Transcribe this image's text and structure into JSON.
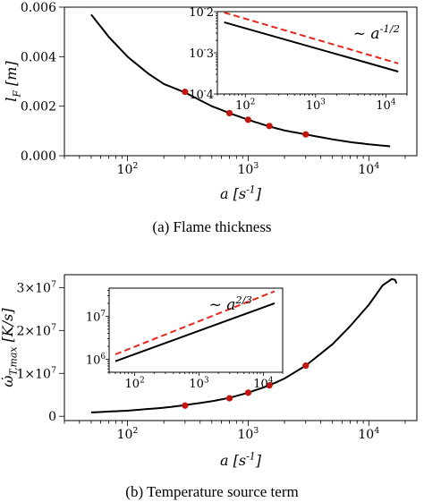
{
  "chart_data": [
    {
      "type": "line",
      "caption": "(a) Flame thickness",
      "xlabel": "a [s^{-1}]",
      "ylabel": "l_F [m]",
      "xscale": "log",
      "xlim": [
        30,
        25000
      ],
      "ylim": [
        0,
        0.006
      ],
      "yticks": [
        "0.000",
        "0.002",
        "0.004",
        "0.006"
      ],
      "xticks": [
        "10^2",
        "10^3",
        "10^4"
      ],
      "grid": false,
      "series": [
        {
          "color": "#000000",
          "style": "solid",
          "x": [
            50,
            70,
            100,
            150,
            200,
            300,
            500,
            700,
            1000,
            1500,
            2000,
            3000,
            5000,
            7000,
            10000,
            15000
          ],
          "y": [
            0.0057,
            0.0048,
            0.004,
            0.0033,
            0.0029,
            0.00255,
            0.002,
            0.00172,
            0.00145,
            0.00118,
            0.00102,
            0.00086,
            0.00066,
            0.00055,
            0.00046,
            0.00038
          ]
        },
        {
          "color": "#c0160f",
          "style": "markers",
          "x": [
            300,
            700,
            1000,
            1500,
            3000
          ],
          "y": [
            0.00258,
            0.00172,
            0.00145,
            0.0012,
            0.00086
          ]
        }
      ],
      "inset": {
        "xscale": "log",
        "yscale": "log",
        "xlim": [
          40,
          20000
        ],
        "ylim": [
          0.0001,
          0.01
        ],
        "xticks": [
          "10^2",
          "10^3",
          "10^4"
        ],
        "yticks": [
          "10^-2",
          "10^-3",
          "10^-4"
        ],
        "annotation": "~ a^{-1/2}",
        "series": [
          {
            "color": "#000000",
            "style": "solid",
            "x": [
              50,
              15000
            ],
            "y": [
              0.0055,
              0.00035
            ]
          },
          {
            "color": "#e8261b",
            "style": "dashed",
            "x": [
              50,
              15000
            ],
            "y": [
              0.0095,
              0.00055
            ]
          }
        ]
      }
    },
    {
      "type": "line",
      "caption": "(b) Temperature source term",
      "xlabel": "a [s^{-1}]",
      "ylabel": "ω̇_{T,max} [K/s]",
      "xscale": "log",
      "xlim": [
        30,
        25000
      ],
      "ylim": [
        -1000000,
        33000000
      ],
      "yticks": [
        "0",
        "1×10^7",
        "2×10^7",
        "3×10^7"
      ],
      "xticks": [
        "10^2",
        "10^3",
        "10^4"
      ],
      "grid": false,
      "series": [
        {
          "color": "#000000",
          "style": "solid",
          "x": [
            50,
            100,
            200,
            300,
            500,
            700,
            1000,
            1500,
            2000,
            3000,
            5000,
            7000,
            10000,
            13000,
            15500,
            16500,
            17000
          ],
          "y": [
            900000,
            1300000,
            2000000,
            2600000,
            3500000,
            4300000,
            5500000,
            7200000,
            8800000,
            11800000,
            16800000,
            21000000,
            26000000,
            30500000,
            32000000,
            31800000,
            31000000
          ]
        },
        {
          "color": "#c0160f",
          "style": "markers",
          "x": [
            300,
            700,
            1000,
            1500,
            3000
          ],
          "y": [
            2500000,
            4200000,
            5500000,
            7200000,
            11800000
          ]
        }
      ],
      "inset": {
        "xscale": "log",
        "yscale": "log",
        "xlim": [
          40,
          20000
        ],
        "ylim": [
          500000,
          45000000
        ],
        "xticks": [
          "10^2",
          "10^3",
          "10^4"
        ],
        "yticks": [
          "10^7",
          "10^6"
        ],
        "annotation": "~ a^{2/3}",
        "series": [
          {
            "color": "#000000",
            "style": "solid",
            "x": [
              50,
              15000
            ],
            "y": [
              900000,
              20000000
            ]
          },
          {
            "color": "#e8261b",
            "style": "dashed",
            "x": [
              50,
              15000
            ],
            "y": [
              1300000,
              38000000
            ]
          }
        ]
      }
    }
  ]
}
